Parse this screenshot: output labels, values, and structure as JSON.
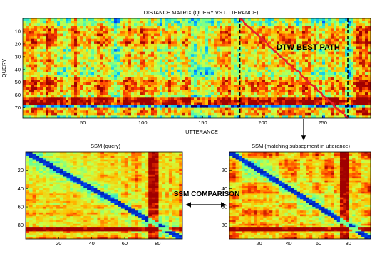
{
  "top_panel": {
    "title": "DISTANCE MATRIX (QUERY VS UTTERANCE)",
    "xlabel": "UTTERANCE",
    "ylabel": "QUERY",
    "x_ticks": [
      "50",
      "100",
      "150",
      "200",
      "250"
    ],
    "x_tick_values": [
      50,
      100,
      150,
      200,
      250
    ],
    "x_range": [
      0,
      290
    ],
    "y_ticks": [
      "10",
      "20",
      "30",
      "40",
      "50",
      "60",
      "70"
    ],
    "y_tick_values": [
      10,
      20,
      30,
      40,
      50,
      60,
      70
    ],
    "y_range": [
      0,
      78
    ],
    "dashed_lines_x": [
      181,
      271
    ],
    "path_start": [
      181,
      0
    ],
    "path_end": [
      271,
      78
    ],
    "path_color": "#e8202a",
    "annotation": "DTW BEST PATH"
  },
  "left_panel": {
    "title": "SSM (query)",
    "x_ticks": [
      "20",
      "40",
      "60",
      "80"
    ],
    "x_tick_values": [
      20,
      40,
      60,
      80
    ],
    "y_ticks": [
      "20",
      "40",
      "60",
      "80"
    ],
    "y_tick_values": [
      20,
      40,
      60,
      80
    ],
    "range": [
      0,
      95
    ]
  },
  "right_panel": {
    "title": "SSM (matching subsegment in utterance)",
    "x_ticks": [
      "20",
      "40",
      "60",
      "80"
    ],
    "x_tick_values": [
      20,
      40,
      60,
      80
    ],
    "y_ticks": [
      "20",
      "40",
      "60",
      "80"
    ],
    "y_tick_values": [
      20,
      40,
      60,
      80
    ],
    "range": [
      0,
      95
    ]
  },
  "comparison_label": "SSM COMPARISON",
  "colormap": [
    "#000080",
    "#0050ff",
    "#00c0ff",
    "#60ffa0",
    "#d0ff40",
    "#ffc000",
    "#ff4000",
    "#a00000"
  ]
}
